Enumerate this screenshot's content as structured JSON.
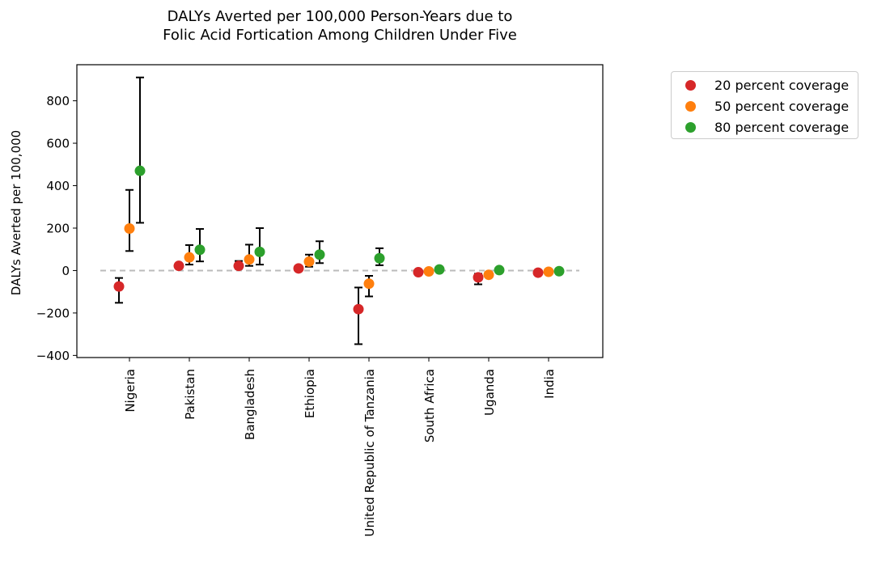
{
  "chart_data": {
    "type": "scatter",
    "title_line1": "DALYs Averted per 100,000 Person-Years due to",
    "title_line2": "Folic Acid Fortication Among Children Under Five",
    "xlabel": "",
    "ylabel": "DALYs Averted per 100,000",
    "ylim": [
      -410,
      970
    ],
    "yticks": [
      -400,
      -200,
      0,
      200,
      400,
      600,
      800
    ],
    "grid": false,
    "reference_line": 0,
    "legend_position": "outside right, top",
    "categories": [
      "Nigeria",
      "Pakistan",
      "Bangladesh",
      "Ethiopia",
      "United Republic of Tanzania",
      "South Africa",
      "Uganda",
      "India"
    ],
    "series": [
      {
        "name": "20 percent coverage",
        "color": "#d62728",
        "values": [
          -75,
          22,
          22,
          10,
          -182,
          -8,
          -32,
          -10
        ],
        "lower": [
          -152,
          18,
          8,
          5,
          -347,
          -14,
          -65,
          -16
        ],
        "upper": [
          -35,
          28,
          45,
          16,
          -80,
          -3,
          -15,
          -5
        ]
      },
      {
        "name": "50 percent coverage",
        "color": "#ff7f0e",
        "values": [
          198,
          62,
          52,
          42,
          -62,
          -4,
          -20,
          -6
        ],
        "lower": [
          92,
          28,
          22,
          18,
          -122,
          -8,
          -28,
          -9
        ],
        "upper": [
          380,
          120,
          122,
          75,
          -25,
          1,
          -12,
          -3
        ]
      },
      {
        "name": "80 percent coverage",
        "color": "#2ca02c",
        "values": [
          470,
          98,
          88,
          75,
          58,
          5,
          2,
          -3
        ],
        "lower": [
          225,
          43,
          28,
          35,
          25,
          0,
          -2,
          -6
        ],
        "upper": [
          910,
          196,
          200,
          138,
          105,
          10,
          6,
          0
        ]
      }
    ]
  }
}
